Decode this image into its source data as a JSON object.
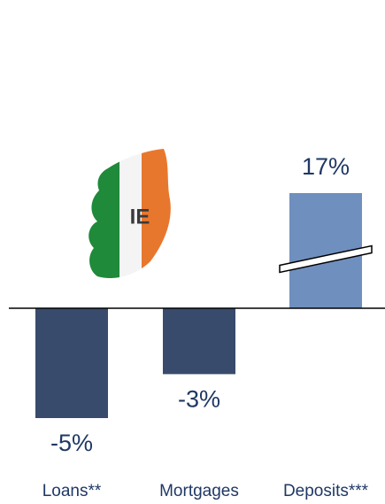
{
  "chart_data": {
    "type": "bar",
    "categories": [
      "Loans**",
      "Mortgages",
      "Deposits***"
    ],
    "values": [
      -5,
      -3,
      17
    ],
    "value_labels": [
      "-5%",
      "-3%",
      "17%"
    ],
    "colors": [
      "#394b6c",
      "#394b6c",
      "#6f8fbe"
    ],
    "annotation": "IE"
  }
}
